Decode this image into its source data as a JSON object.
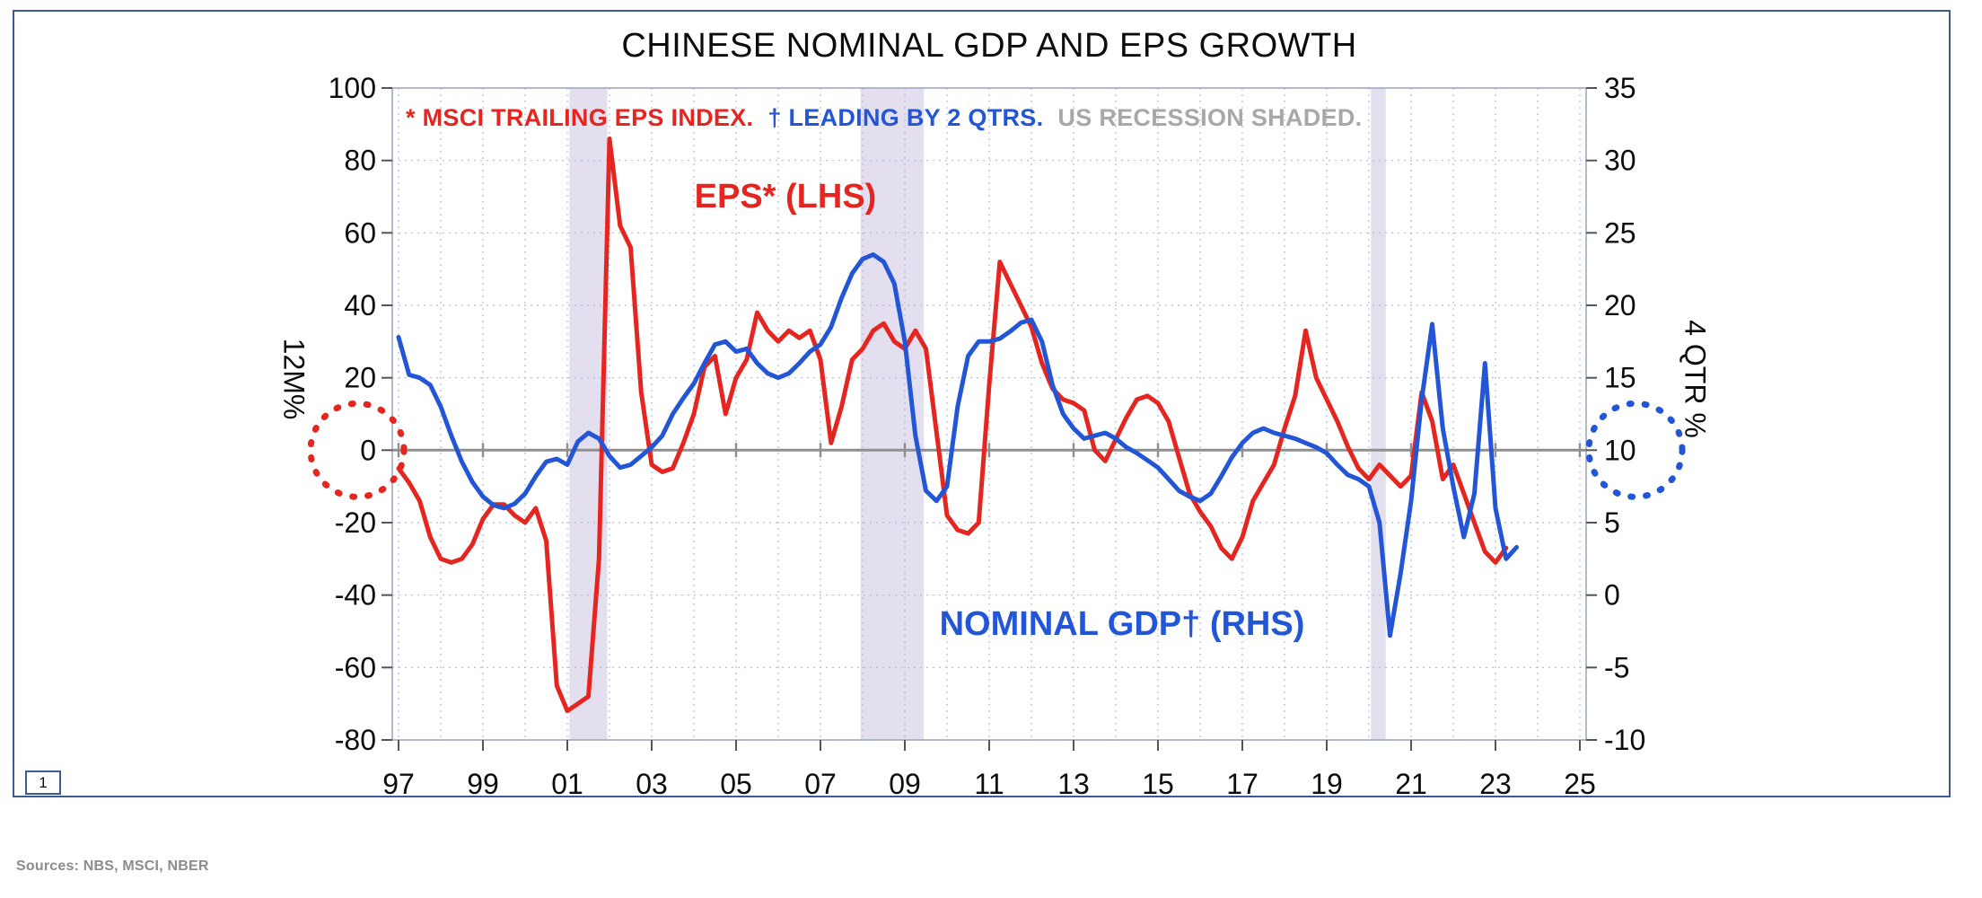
{
  "page": {
    "number": "1",
    "sources": "Sources: NBS, MSCI, NBER"
  },
  "title": "CHINESE NOMINAL GDP AND EPS GROWTH",
  "legend": {
    "eps_note": "* MSCI TRAILING EPS INDEX.",
    "lead_note": "† LEADING BY 2 QTRS.",
    "recession_note": "US RECESSION SHADED."
  },
  "labels": {
    "eps_series": "EPS* (LHS)",
    "gdp_series": "NOMINAL GDP† (RHS)",
    "left_axis": "12M%",
    "right_axis": "4 QTR %"
  },
  "colors": {
    "red": "#e52620",
    "blue": "#2356d6",
    "legend_gray": "#a8a8a8",
    "band": "#e3dfee",
    "grid": "#b0bbdf",
    "zero_line": "#8f8f8f",
    "plot_border": "#9fa9c4",
    "frame_border": "#3d5a96",
    "tick": "#555555",
    "axis_text": "#0c0c0c",
    "sources_gray": "#8c8c8c"
  },
  "chart_data": {
    "type": "line",
    "title": "CHINESE NOMINAL GDP AND EPS GROWTH",
    "grid": true,
    "x_axis": {
      "min": 1997,
      "max": 2025,
      "tick_years": [
        1997,
        1999,
        2001,
        2003,
        2005,
        2007,
        2009,
        2011,
        2013,
        2015,
        2017,
        2019,
        2021,
        2023,
        2025
      ],
      "tick_labels": [
        "97",
        "99",
        "01",
        "03",
        "05",
        "07",
        "09",
        "11",
        "13",
        "15",
        "17",
        "19",
        "21",
        "23",
        "25"
      ]
    },
    "left_axis": {
      "label": "12M%",
      "min": -80,
      "max": 100,
      "tick_values": [
        100,
        80,
        60,
        40,
        20,
        0,
        -20,
        -40,
        -60,
        -80
      ],
      "tick_labels": [
        "100",
        "80",
        "60",
        "40",
        "20",
        "0",
        "-20",
        "-40",
        "-60",
        "-80"
      ]
    },
    "right_axis": {
      "label": "4 QTR %",
      "min": -10,
      "max": 35,
      "tick_values": [
        35,
        30,
        25,
        20,
        15,
        10,
        5,
        0,
        -5,
        -10
      ],
      "tick_labels": [
        "35",
        "30",
        "25",
        "20",
        "15",
        "10",
        "5",
        "0",
        "-5",
        "-10"
      ]
    },
    "recession_bands": [
      [
        2001.05,
        2001.95
      ],
      [
        2007.95,
        2009.45
      ],
      [
        2020.05,
        2020.4
      ]
    ],
    "annotations": {
      "left_circle_value": 0,
      "right_circle_value": 10
    },
    "series": [
      {
        "name": "EPS* (LHS)",
        "axis": "left",
        "color": "#e52620",
        "points": [
          [
            1997.0,
            -5
          ],
          [
            1997.25,
            -9
          ],
          [
            1997.5,
            -14
          ],
          [
            1997.75,
            -24
          ],
          [
            1998.0,
            -30
          ],
          [
            1998.25,
            -31
          ],
          [
            1998.5,
            -30
          ],
          [
            1998.75,
            -26
          ],
          [
            1999.0,
            -19
          ],
          [
            1999.25,
            -15
          ],
          [
            1999.5,
            -15
          ],
          [
            1999.75,
            -18
          ],
          [
            2000.0,
            -20
          ],
          [
            2000.25,
            -16
          ],
          [
            2000.5,
            -25
          ],
          [
            2000.75,
            -65
          ],
          [
            2001.0,
            -72
          ],
          [
            2001.25,
            -70
          ],
          [
            2001.5,
            -68
          ],
          [
            2001.75,
            -30
          ],
          [
            2002.0,
            86
          ],
          [
            2002.25,
            62
          ],
          [
            2002.5,
            56
          ],
          [
            2002.75,
            16
          ],
          [
            2003.0,
            -4
          ],
          [
            2003.25,
            -6
          ],
          [
            2003.5,
            -5
          ],
          [
            2003.75,
            2
          ],
          [
            2004.0,
            10
          ],
          [
            2004.25,
            23
          ],
          [
            2004.5,
            26
          ],
          [
            2004.75,
            10
          ],
          [
            2005.0,
            20
          ],
          [
            2005.25,
            25
          ],
          [
            2005.5,
            38
          ],
          [
            2005.75,
            33
          ],
          [
            2006.0,
            30
          ],
          [
            2006.25,
            33
          ],
          [
            2006.5,
            31
          ],
          [
            2006.75,
            33
          ],
          [
            2007.0,
            25
          ],
          [
            2007.25,
            2
          ],
          [
            2007.5,
            12
          ],
          [
            2007.75,
            25
          ],
          [
            2008.0,
            28
          ],
          [
            2008.25,
            33
          ],
          [
            2008.5,
            35
          ],
          [
            2008.75,
            30
          ],
          [
            2009.0,
            28
          ],
          [
            2009.25,
            33
          ],
          [
            2009.5,
            28
          ],
          [
            2009.75,
            5
          ],
          [
            2010.0,
            -18
          ],
          [
            2010.25,
            -22
          ],
          [
            2010.5,
            -23
          ],
          [
            2010.75,
            -20
          ],
          [
            2011.0,
            18
          ],
          [
            2011.25,
            52
          ],
          [
            2011.5,
            46
          ],
          [
            2011.75,
            40
          ],
          [
            2012.0,
            34
          ],
          [
            2012.25,
            24
          ],
          [
            2012.5,
            17
          ],
          [
            2012.75,
            14
          ],
          [
            2013.0,
            13
          ],
          [
            2013.25,
            11
          ],
          [
            2013.5,
            0
          ],
          [
            2013.75,
            -3
          ],
          [
            2014.0,
            3
          ],
          [
            2014.25,
            9
          ],
          [
            2014.5,
            14
          ],
          [
            2014.75,
            15
          ],
          [
            2015.0,
            13
          ],
          [
            2015.25,
            8
          ],
          [
            2015.5,
            -2
          ],
          [
            2015.75,
            -12
          ],
          [
            2016.0,
            -17
          ],
          [
            2016.25,
            -21
          ],
          [
            2016.5,
            -27
          ],
          [
            2016.75,
            -30
          ],
          [
            2017.0,
            -24
          ],
          [
            2017.25,
            -14
          ],
          [
            2017.5,
            -9
          ],
          [
            2017.75,
            -4
          ],
          [
            2018.0,
            6
          ],
          [
            2018.25,
            15
          ],
          [
            2018.5,
            33
          ],
          [
            2018.75,
            20
          ],
          [
            2019.0,
            14
          ],
          [
            2019.25,
            8
          ],
          [
            2019.5,
            1
          ],
          [
            2019.75,
            -5
          ],
          [
            2020.0,
            -8
          ],
          [
            2020.25,
            -4
          ],
          [
            2020.5,
            -7
          ],
          [
            2020.75,
            -10
          ],
          [
            2021.0,
            -7
          ],
          [
            2021.25,
            16
          ],
          [
            2021.5,
            8
          ],
          [
            2021.75,
            -8
          ],
          [
            2022.0,
            -4
          ],
          [
            2022.25,
            -12
          ],
          [
            2022.5,
            -20
          ],
          [
            2022.75,
            -28
          ],
          [
            2023.0,
            -31
          ],
          [
            2023.25,
            -27
          ]
        ]
      },
      {
        "name": "NOMINAL GDP† (RHS)",
        "axis": "right",
        "color": "#2356d6",
        "points": [
          [
            1997.0,
            17.8
          ],
          [
            1997.25,
            15.2
          ],
          [
            1997.5,
            15.0
          ],
          [
            1997.75,
            14.5
          ],
          [
            1998.0,
            13.0
          ],
          [
            1998.25,
            11.0
          ],
          [
            1998.5,
            9.2
          ],
          [
            1998.75,
            7.8
          ],
          [
            1999.0,
            6.8
          ],
          [
            1999.25,
            6.2
          ],
          [
            1999.5,
            6.0
          ],
          [
            1999.75,
            6.3
          ],
          [
            2000.0,
            7.0
          ],
          [
            2000.25,
            8.2
          ],
          [
            2000.5,
            9.2
          ],
          [
            2000.75,
            9.4
          ],
          [
            2001.0,
            9.0
          ],
          [
            2001.25,
            10.6
          ],
          [
            2001.5,
            11.2
          ],
          [
            2001.75,
            10.8
          ],
          [
            2002.0,
            9.6
          ],
          [
            2002.25,
            8.8
          ],
          [
            2002.5,
            9.0
          ],
          [
            2002.75,
            9.6
          ],
          [
            2003.0,
            10.2
          ],
          [
            2003.25,
            11.0
          ],
          [
            2003.5,
            12.5
          ],
          [
            2003.75,
            13.6
          ],
          [
            2004.0,
            14.6
          ],
          [
            2004.25,
            16.0
          ],
          [
            2004.5,
            17.3
          ],
          [
            2004.75,
            17.5
          ],
          [
            2005.0,
            16.8
          ],
          [
            2005.25,
            17.0
          ],
          [
            2005.5,
            16.0
          ],
          [
            2005.75,
            15.3
          ],
          [
            2006.0,
            15.0
          ],
          [
            2006.25,
            15.3
          ],
          [
            2006.5,
            16.0
          ],
          [
            2006.75,
            16.8
          ],
          [
            2007.0,
            17.3
          ],
          [
            2007.25,
            18.5
          ],
          [
            2007.5,
            20.5
          ],
          [
            2007.75,
            22.2
          ],
          [
            2008.0,
            23.2
          ],
          [
            2008.25,
            23.5
          ],
          [
            2008.5,
            23.0
          ],
          [
            2008.75,
            21.5
          ],
          [
            2009.0,
            17.5
          ],
          [
            2009.25,
            11.0
          ],
          [
            2009.5,
            7.2
          ],
          [
            2009.75,
            6.5
          ],
          [
            2010.0,
            7.5
          ],
          [
            2010.25,
            13.0
          ],
          [
            2010.5,
            16.5
          ],
          [
            2010.75,
            17.5
          ],
          [
            2011.0,
            17.5
          ],
          [
            2011.25,
            17.7
          ],
          [
            2011.5,
            18.2
          ],
          [
            2011.75,
            18.8
          ],
          [
            2012.0,
            19.0
          ],
          [
            2012.25,
            17.5
          ],
          [
            2012.5,
            14.5
          ],
          [
            2012.75,
            12.5
          ],
          [
            2013.0,
            11.5
          ],
          [
            2013.25,
            10.8
          ],
          [
            2013.5,
            11.0
          ],
          [
            2013.75,
            11.2
          ],
          [
            2014.0,
            10.8
          ],
          [
            2014.25,
            10.2
          ],
          [
            2014.5,
            9.8
          ],
          [
            2014.75,
            9.3
          ],
          [
            2015.0,
            8.8
          ],
          [
            2015.25,
            8.0
          ],
          [
            2015.5,
            7.2
          ],
          [
            2015.75,
            6.8
          ],
          [
            2016.0,
            6.5
          ],
          [
            2016.25,
            7.0
          ],
          [
            2016.5,
            8.2
          ],
          [
            2016.75,
            9.5
          ],
          [
            2017.0,
            10.5
          ],
          [
            2017.25,
            11.2
          ],
          [
            2017.5,
            11.5
          ],
          [
            2017.75,
            11.2
          ],
          [
            2018.0,
            11.0
          ],
          [
            2018.25,
            10.8
          ],
          [
            2018.5,
            10.5
          ],
          [
            2018.75,
            10.2
          ],
          [
            2019.0,
            9.8
          ],
          [
            2019.25,
            9.0
          ],
          [
            2019.5,
            8.3
          ],
          [
            2019.75,
            8.0
          ],
          [
            2020.0,
            7.5
          ],
          [
            2020.25,
            5.0
          ],
          [
            2020.5,
            -2.8
          ],
          [
            2020.75,
            1.5
          ],
          [
            2021.0,
            6.5
          ],
          [
            2021.25,
            13.5
          ],
          [
            2021.5,
            18.7
          ],
          [
            2021.75,
            11.5
          ],
          [
            2022.0,
            7.5
          ],
          [
            2022.25,
            4.0
          ],
          [
            2022.5,
            7.0
          ],
          [
            2022.75,
            16.0
          ],
          [
            2023.0,
            6.0
          ],
          [
            2023.25,
            2.5
          ],
          [
            2023.5,
            3.3
          ]
        ]
      }
    ]
  }
}
